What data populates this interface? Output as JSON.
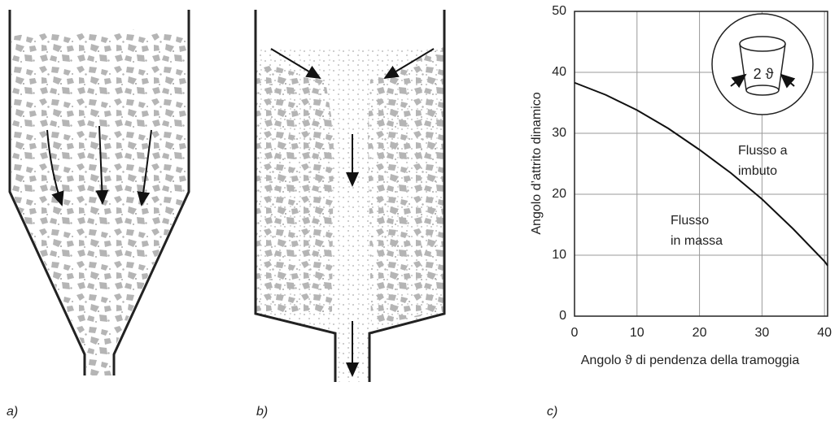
{
  "panel_labels": [
    "a)",
    "b)",
    "c)"
  ],
  "chart_data": {
    "type": "line",
    "x_label": "Angolo ϑ di pendenza della tramoggia",
    "y_label": "Angolo d’attrito dinamico",
    "x": [
      0,
      5,
      10,
      15,
      20,
      25,
      30,
      35,
      40,
      40.5
    ],
    "series": [
      {
        "color": "#111111",
        "values": [
          38.3,
          36.3,
          33.8,
          30.8,
          27.3,
          23.5,
          19.2,
          14.3,
          9.0,
          8.3
        ]
      }
    ],
    "xlim": [
      0,
      40.5
    ],
    "ylim": [
      0,
      50
    ],
    "xticks": [
      0,
      10,
      20,
      30,
      40
    ],
    "yticks": [
      0,
      10,
      20,
      30,
      40,
      50
    ],
    "grid": true,
    "annotations": [
      [
        "Flusso a",
        "imbuto"
      ],
      [
        "Flusso",
        "in massa"
      ]
    ],
    "inset_label": "2 ϑ"
  }
}
